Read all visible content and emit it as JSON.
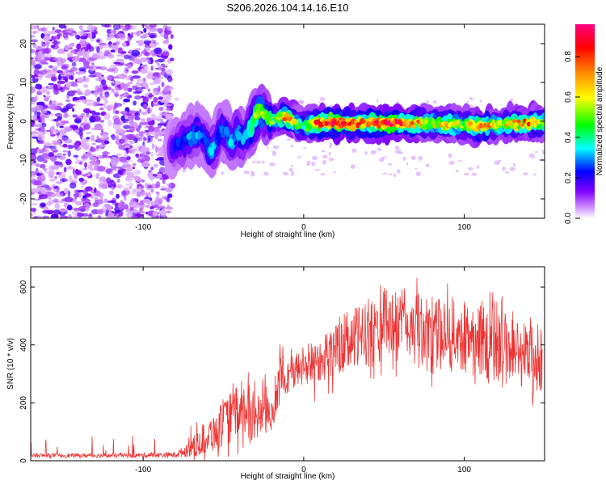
{
  "title": "S206.2026.104.14.16.E10",
  "chart_data": [
    {
      "type": "heatmap",
      "name": "spectrogram",
      "xlabel": "Height of straight line (km)",
      "ylabel": "Frequency (Hz)",
      "xlim": [
        -170,
        150
      ],
      "ylim": [
        -25,
        25
      ],
      "xticks": [
        -100,
        0,
        100
      ],
      "yticks": [
        -20,
        -10,
        0,
        10,
        20
      ],
      "colorbar": {
        "label": "Normalized spectral amplitude",
        "range": [
          0,
          0.96
        ],
        "ticks": [
          0.0,
          0.2,
          0.4,
          0.6,
          0.8
        ],
        "tick_labels": [
          "0.0",
          "0.2",
          "0.4",
          "0.6",
          "0.8"
        ],
        "colors": [
          "#ffffff",
          "#cc88ff",
          "#8000ff",
          "#0000ff",
          "#00ffff",
          "#00ff00",
          "#ffff00",
          "#ff8000",
          "#ff0000",
          "#ff0080"
        ]
      },
      "noise_region_x": [
        -170,
        -82
      ],
      "ridge": {
        "x": [
          -82,
          -78,
          -74,
          -70,
          -66,
          -62,
          -58,
          -55,
          -52,
          -48,
          -45,
          -42,
          -38,
          -35,
          -32,
          -28,
          -25,
          -20,
          -15,
          -10,
          -6,
          -2,
          0,
          5,
          10,
          20,
          30,
          40,
          50,
          60,
          70,
          80,
          90,
          100,
          110,
          120,
          130,
          140,
          150
        ],
        "y": [
          -7,
          -6,
          -5,
          -4,
          -3,
          -4,
          -8,
          -6,
          -2,
          -3,
          -6,
          -3,
          -5,
          -3,
          -1,
          3,
          2,
          0,
          1,
          1,
          0,
          -1,
          -1,
          -0.5,
          -0.5,
          -0.3,
          -0.5,
          -0.5,
          -0.5,
          -0.5,
          -0.5,
          -0.5,
          -0.8,
          -1,
          -1.5,
          -1,
          -0.5,
          -0.5,
          -0.5
        ],
        "amplitude": [
          0.2,
          0.25,
          0.3,
          0.3,
          0.3,
          0.25,
          0.35,
          0.3,
          0.3,
          0.3,
          0.35,
          0.3,
          0.35,
          0.4,
          0.45,
          0.6,
          0.5,
          0.5,
          0.6,
          0.85,
          0.7,
          0.5,
          0.45,
          0.7,
          0.9,
          0.95,
          0.85,
          0.75,
          0.95,
          0.9,
          0.75,
          0.6,
          0.7,
          0.55,
          0.85,
          0.6,
          0.7,
          0.8,
          0.6
        ]
      }
    },
    {
      "type": "line",
      "name": "snr",
      "xlabel": "Height of straight line (km)",
      "ylabel": "SNR (10 * v/v)",
      "xlim": [
        -170,
        150
      ],
      "ylim": [
        0,
        670
      ],
      "xticks": [
        -100,
        0,
        100
      ],
      "yticks": [
        0,
        200,
        400,
        600
      ],
      "color": "#ee3333",
      "envelope": {
        "x": [
          -170,
          -140,
          -110,
          -80,
          -72,
          -65,
          -60,
          -55,
          -45,
          -38,
          -30,
          -25,
          -20,
          -15,
          -10,
          0,
          10,
          20,
          30,
          40,
          50,
          60,
          70,
          80,
          90,
          100,
          110,
          120,
          130,
          140,
          148
        ],
        "low": [
          10,
          10,
          10,
          10,
          12,
          15,
          20,
          30,
          60,
          80,
          60,
          70,
          100,
          200,
          230,
          250,
          270,
          290,
          300,
          320,
          350,
          330,
          320,
          300,
          310,
          300,
          280,
          250,
          260,
          240,
          200
        ],
        "high": [
          25,
          25,
          25,
          30,
          60,
          110,
          150,
          170,
          240,
          280,
          230,
          250,
          200,
          360,
          350,
          400,
          430,
          470,
          520,
          560,
          590,
          600,
          580,
          560,
          560,
          550,
          560,
          540,
          500,
          480,
          460
        ]
      }
    }
  ]
}
